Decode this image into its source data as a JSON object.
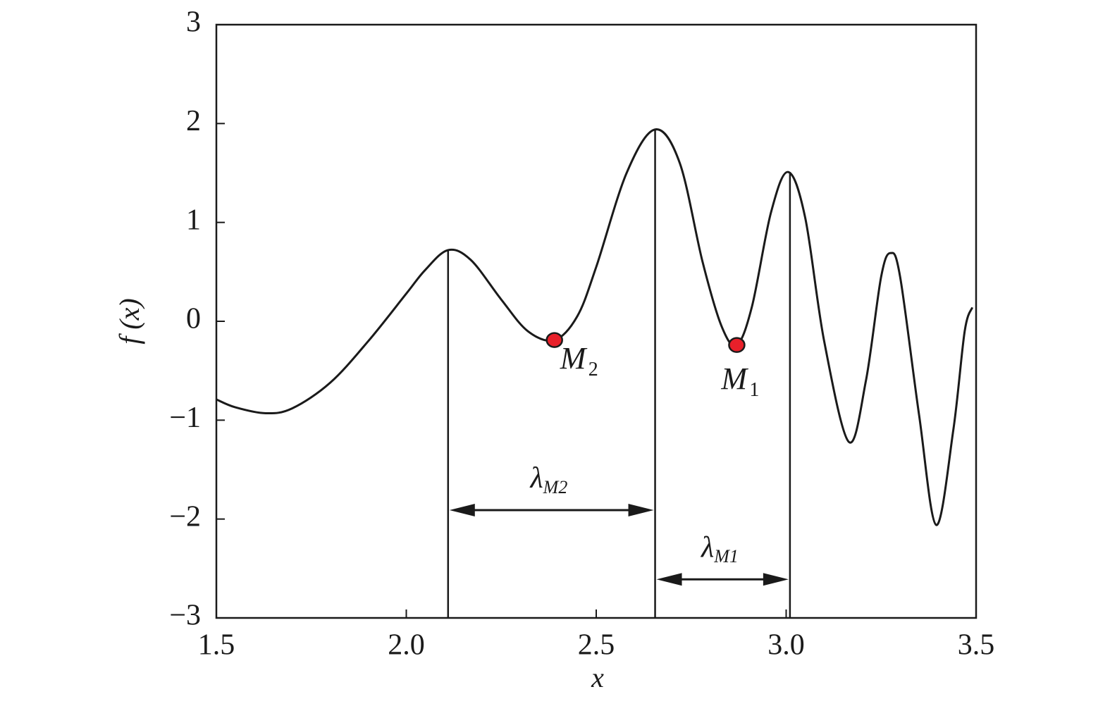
{
  "chart_data": {
    "type": "line",
    "xlabel": "x",
    "ylabel": "f (x)",
    "x": [
      1.5,
      1.55,
      1.63,
      1.7,
      1.8,
      1.9,
      2.0,
      2.05,
      2.11,
      2.17,
      2.25,
      2.32,
      2.39,
      2.45,
      2.5,
      2.58,
      2.655,
      2.72,
      2.78,
      2.83,
      2.87,
      2.91,
      2.96,
      3.005,
      3.05,
      3.1,
      3.165,
      3.21,
      3.25,
      3.275,
      3.3,
      3.35,
      3.395,
      3.44,
      3.47,
      3.49
    ],
    "series": [
      {
        "color": "#1a1a1a",
        "values": [
          -0.79,
          -0.87,
          -0.93,
          -0.88,
          -0.62,
          -0.2,
          0.28,
          0.52,
          0.72,
          0.62,
          0.22,
          -0.1,
          -0.19,
          0.05,
          0.55,
          1.5,
          1.94,
          1.6,
          0.6,
          -0.05,
          -0.24,
          0.15,
          1.1,
          1.51,
          1.05,
          -0.2,
          -1.22,
          -0.6,
          0.45,
          0.69,
          0.45,
          -0.95,
          -2.06,
          -1.1,
          -0.1,
          0.14
        ]
      }
    ],
    "xlim": [
      1.5,
      3.5
    ],
    "ylim": [
      -3,
      3
    ],
    "xticks": [
      1.5,
      {
        "value": 2,
        "label": "2.0"
      },
      2.5,
      {
        "value": 3,
        "label": "3.0"
      },
      3.5
    ],
    "yticks": [
      {
        "value": -3,
        "label": "−3"
      },
      {
        "value": -2,
        "label": "−2"
      },
      {
        "value": -1,
        "label": "−1"
      },
      0,
      1,
      2,
      3
    ],
    "markers": [
      {
        "x": 2.39,
        "y": -0.19,
        "label": "M",
        "subscript": "2",
        "color": "#e8202a"
      },
      {
        "x": 2.87,
        "y": -0.24,
        "label": "M",
        "subscript": "1",
        "color": "#e8202a"
      }
    ],
    "vlines": [
      {
        "x": 2.11,
        "y": 0.72
      },
      {
        "x": 2.655,
        "y": 1.94
      },
      {
        "x": 3.01,
        "y": 1.51
      }
    ],
    "intervals": [
      {
        "x0": 2.11,
        "x1": 2.655,
        "y": -1.91,
        "label": "λ",
        "subscript": "M2"
      },
      {
        "x0": 2.655,
        "x1": 3.01,
        "y": -2.61,
        "label": "λ",
        "subscript": "M1"
      }
    ]
  }
}
